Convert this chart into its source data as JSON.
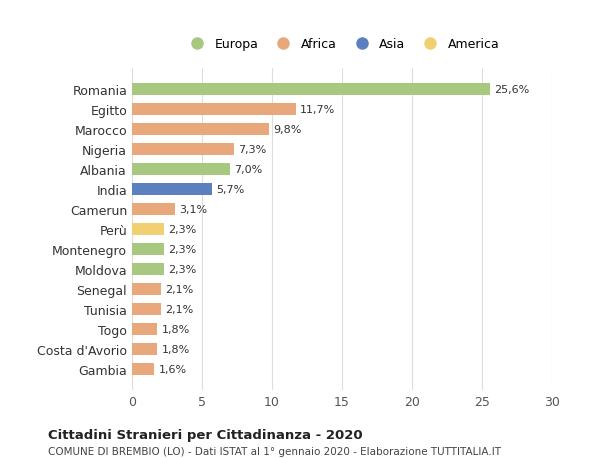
{
  "countries": [
    "Romania",
    "Egitto",
    "Marocco",
    "Nigeria",
    "Albania",
    "India",
    "Camerun",
    "Perù",
    "Montenegro",
    "Moldova",
    "Senegal",
    "Tunisia",
    "Togo",
    "Costa d'Avorio",
    "Gambia"
  ],
  "values": [
    25.6,
    11.7,
    9.8,
    7.3,
    7.0,
    5.7,
    3.1,
    2.3,
    2.3,
    2.3,
    2.1,
    2.1,
    1.8,
    1.8,
    1.6
  ],
  "labels": [
    "25,6%",
    "11,7%",
    "9,8%",
    "7,3%",
    "7,0%",
    "5,7%",
    "3,1%",
    "2,3%",
    "2,3%",
    "2,3%",
    "2,1%",
    "2,1%",
    "1,8%",
    "1,8%",
    "1,6%"
  ],
  "continents": [
    "Europa",
    "Africa",
    "Africa",
    "Africa",
    "Europa",
    "Asia",
    "Africa",
    "America",
    "Europa",
    "Europa",
    "Africa",
    "Africa",
    "Africa",
    "Africa",
    "Africa"
  ],
  "colors": {
    "Europa": "#a8c880",
    "Africa": "#e8a87c",
    "Asia": "#5b7fbf",
    "America": "#f0d070"
  },
  "legend_order": [
    "Europa",
    "Africa",
    "Asia",
    "America"
  ],
  "title": "Cittadini Stranieri per Cittadinanza - 2020",
  "subtitle": "COMUNE DI BREMBIO (LO) - Dati ISTAT al 1° gennaio 2020 - Elaborazione TUTTITALIA.IT",
  "xlim": [
    0,
    30
  ],
  "xticks": [
    0,
    5,
    10,
    15,
    20,
    25,
    30
  ],
  "background_color": "#ffffff",
  "grid_color": "#dddddd"
}
